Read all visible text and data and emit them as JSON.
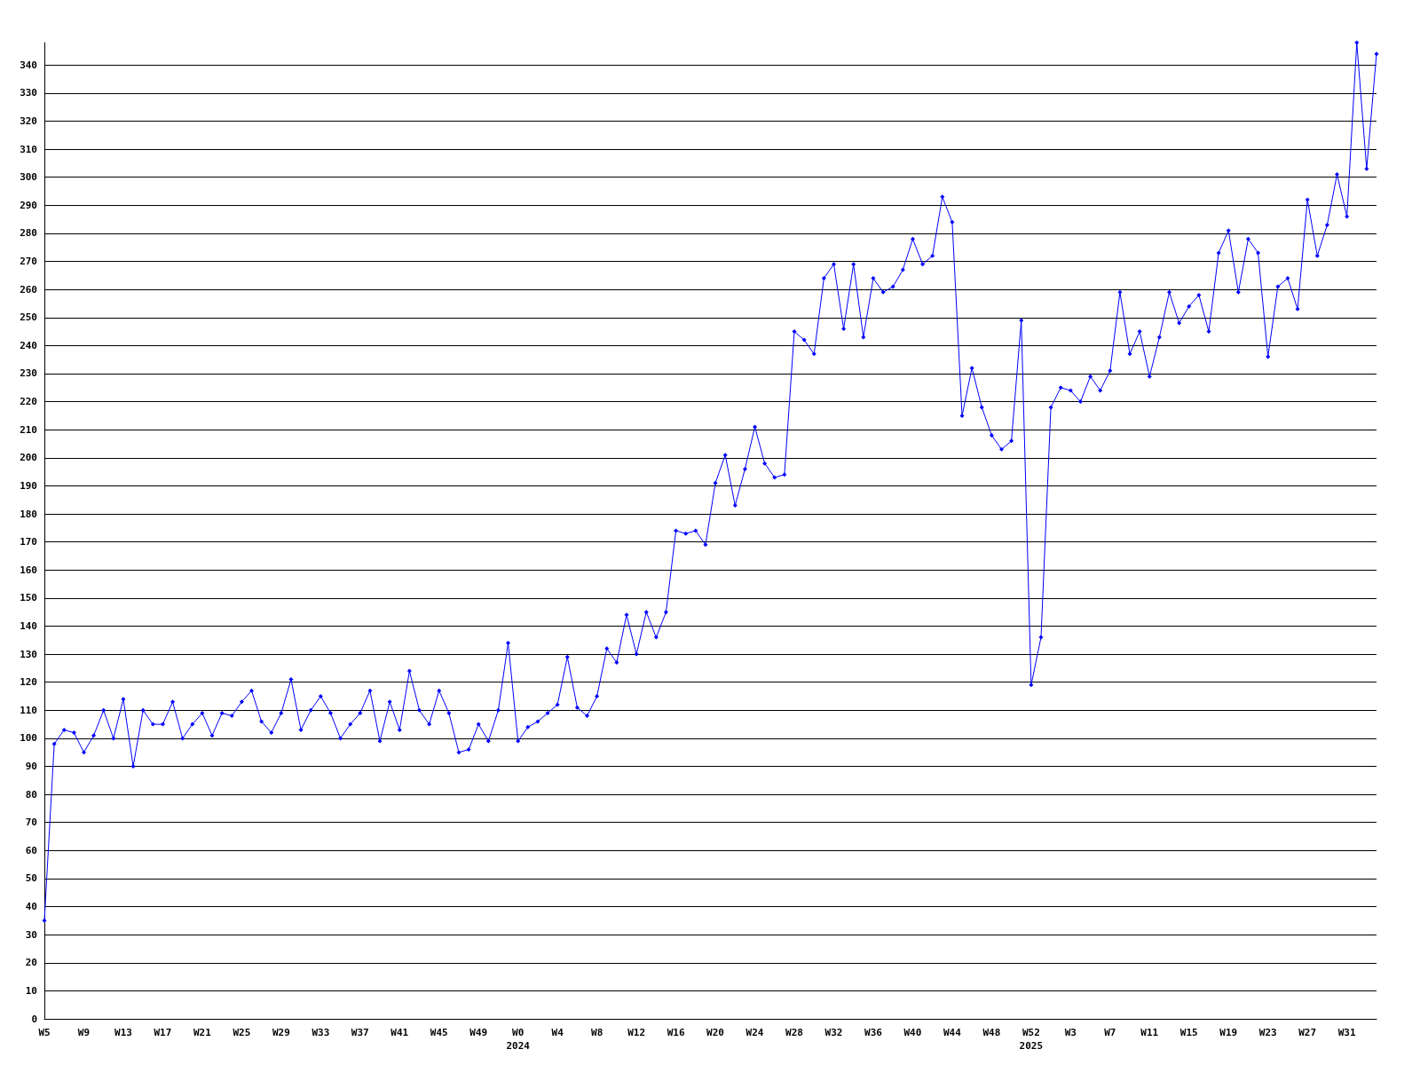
{
  "chart_data": {
    "type": "line",
    "categories": [
      "W5",
      null,
      null,
      null,
      "W9",
      null,
      null,
      null,
      "W13",
      null,
      null,
      null,
      "W17",
      null,
      null,
      null,
      "W21",
      null,
      null,
      null,
      "W25",
      null,
      null,
      null,
      "W29",
      null,
      null,
      null,
      "W33",
      null,
      null,
      null,
      "W37",
      null,
      null,
      null,
      "W41",
      null,
      null,
      null,
      "W45",
      null,
      null,
      null,
      "W49",
      null,
      null,
      null,
      "W0\n2024",
      null,
      null,
      null,
      "W4",
      null,
      null,
      null,
      "W8",
      null,
      null,
      null,
      "W12",
      null,
      null,
      null,
      "W16",
      null,
      null,
      null,
      "W20",
      null,
      null,
      null,
      "W24",
      null,
      null,
      null,
      "W28",
      null,
      null,
      null,
      "W32",
      null,
      null,
      null,
      "W36",
      null,
      null,
      null,
      "W40",
      null,
      null,
      null,
      "W44",
      null,
      null,
      null,
      "W48",
      null,
      null,
      null,
      "W52\n2025",
      null,
      null,
      null,
      "W3",
      null,
      null,
      null,
      "W7",
      null,
      null,
      null,
      "W11",
      null,
      null,
      null,
      "W15",
      null,
      null,
      null,
      "W19",
      null,
      null,
      null,
      "W23",
      null,
      null,
      null,
      "W27",
      null,
      null,
      null,
      "W31",
      null,
      null,
      null
    ],
    "series": [
      {
        "color": "#0000ff",
        "values": [
          35,
          98,
          103,
          102,
          95,
          101,
          110,
          100,
          114,
          90,
          110,
          105,
          105,
          113,
          100,
          105,
          109,
          101,
          109,
          108,
          113,
          117,
          106,
          102,
          109,
          121,
          103,
          110,
          115,
          109,
          100,
          105,
          109,
          117,
          99,
          113,
          103,
          124,
          110,
          105,
          117,
          109,
          95,
          96,
          105,
          99,
          110,
          134,
          99,
          104,
          106,
          109,
          112,
          129,
          111,
          108,
          115,
          132,
          127,
          144,
          130,
          145,
          136,
          145,
          174,
          173,
          174,
          169,
          191,
          201,
          183,
          196,
          211,
          198,
          193,
          194,
          245,
          242,
          237,
          264,
          269,
          246,
          269,
          243,
          264,
          259,
          261,
          267,
          278,
          269,
          272,
          293,
          284,
          215,
          232,
          218,
          208,
          203,
          206,
          249,
          119,
          136,
          218,
          225,
          224,
          220,
          229,
          224,
          231,
          259,
          237,
          245,
          229,
          243,
          259,
          248,
          254,
          258,
          245,
          273,
          281,
          259,
          278,
          273,
          236,
          261,
          264,
          253,
          292,
          272,
          283,
          301,
          286,
          348,
          303,
          344
        ]
      }
    ],
    "ylim": [
      0,
      348
    ],
    "yticks": [
      0,
      10,
      20,
      30,
      40,
      50,
      60,
      70,
      80,
      90,
      100,
      110,
      120,
      130,
      140,
      150,
      160,
      170,
      180,
      190,
      200,
      210,
      220,
      230,
      240,
      250,
      260,
      270,
      280,
      290,
      300,
      310,
      320,
      330,
      340
    ],
    "grid": "y",
    "marker": "diamond",
    "line_style": "solid"
  }
}
